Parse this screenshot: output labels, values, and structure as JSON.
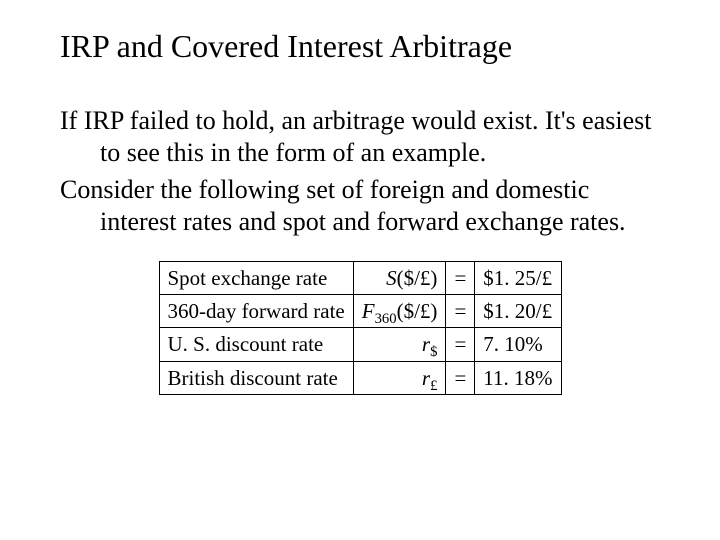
{
  "title": "IRP and Covered Interest Arbitrage",
  "paragraph1": "If IRP failed to hold, an arbitrage would exist. It's easiest to see this in the form of an example.",
  "paragraph2": "Consider the following set of foreign and domestic interest rates and spot and forward exchange rates.",
  "table": {
    "rows": [
      {
        "label": "Spot exchange rate",
        "sym_pre": "S",
        "sym_sub": "",
        "sym_post": "($/£)",
        "eq": "=",
        "value": "$1. 25/£"
      },
      {
        "label": "360-day forward rate",
        "sym_pre": "F",
        "sym_sub": "360",
        "sym_post": "($/£)",
        "eq": "=",
        "value": "$1. 20/£"
      },
      {
        "label": "U. S. discount rate",
        "sym_pre": "r",
        "sym_sub": "$",
        "sym_post": "",
        "eq": "=",
        "value": "7. 10%"
      },
      {
        "label": "British discount rate",
        "sym_pre": "r",
        "sym_sub": "£",
        "sym_post": "",
        "eq": "=",
        "value": "11. 18%"
      }
    ]
  },
  "style": {
    "font_family": "Times New Roman",
    "title_fontsize": 32,
    "body_fontsize": 26,
    "table_fontsize": 21,
    "text_color": "#000000",
    "background_color": "#ffffff",
    "table_border_color": "#000000"
  }
}
